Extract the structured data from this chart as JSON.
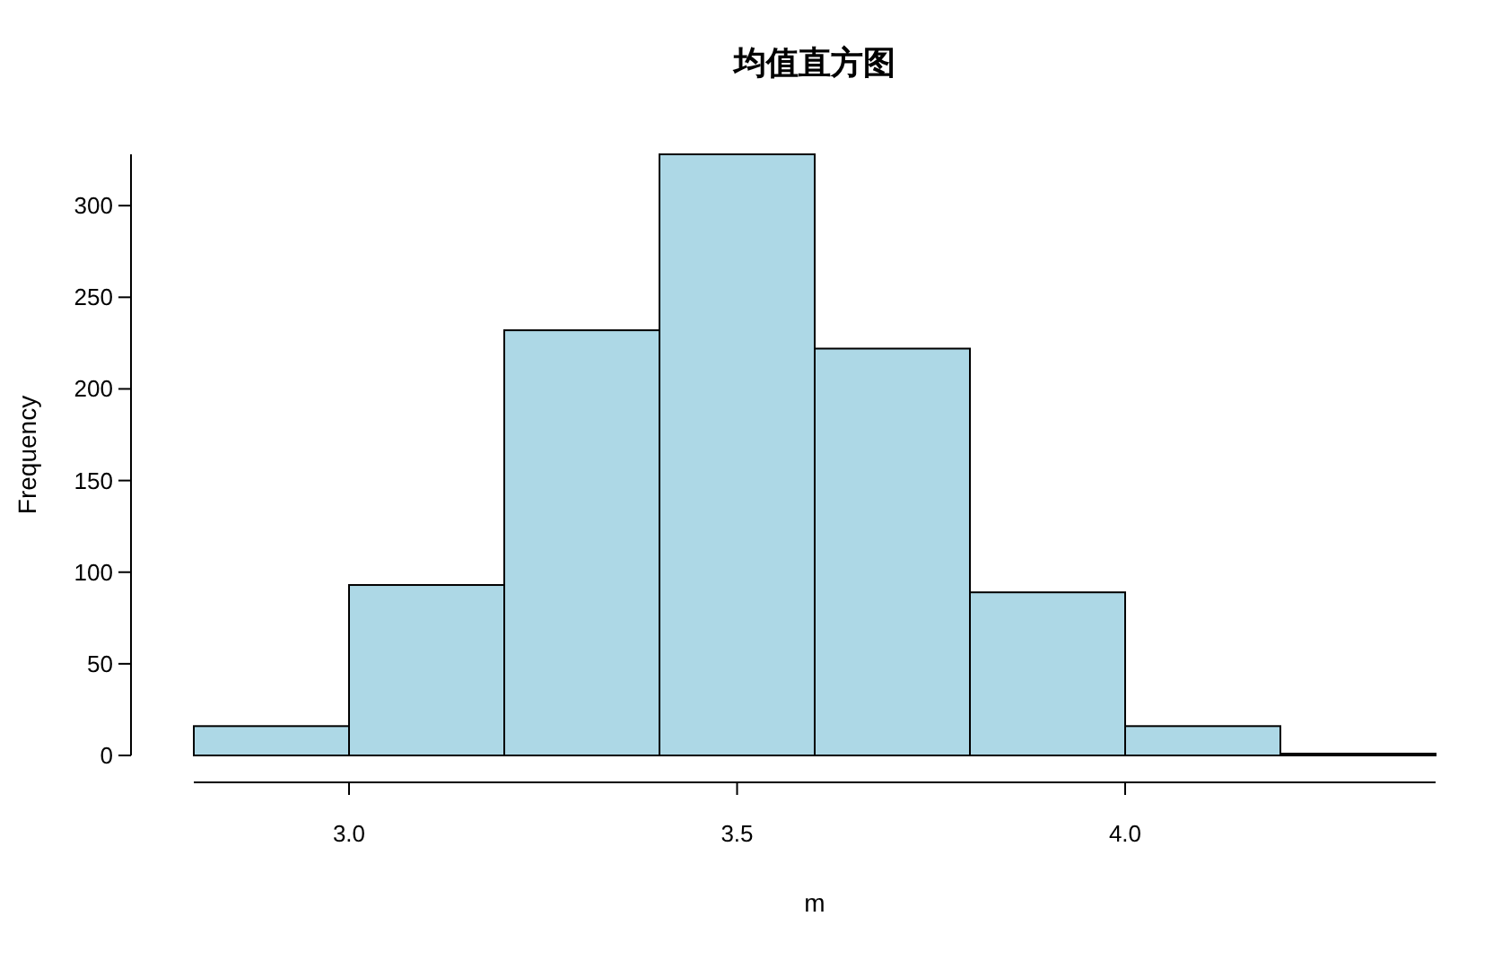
{
  "chart_data": {
    "type": "histogram",
    "title": "均值直方图",
    "xlabel": "m",
    "ylabel": "Frequency",
    "bins": [
      2.8,
      3.0,
      3.2,
      3.4,
      3.6,
      3.8,
      4.0,
      4.2,
      4.4
    ],
    "values": [
      16,
      93,
      232,
      328,
      222,
      89,
      16,
      1
    ],
    "color": "#add8e6",
    "xlim": [
      2.8,
      4.4
    ],
    "ylim": [
      0,
      328
    ],
    "xticks": [
      {
        "value": 3.0,
        "label": "3.0"
      },
      {
        "value": 3.5,
        "label": "3.5"
      },
      {
        "value": 4.0,
        "label": "4.0"
      }
    ],
    "yticks": [
      0,
      50,
      100,
      150,
      200,
      250,
      300
    ]
  }
}
